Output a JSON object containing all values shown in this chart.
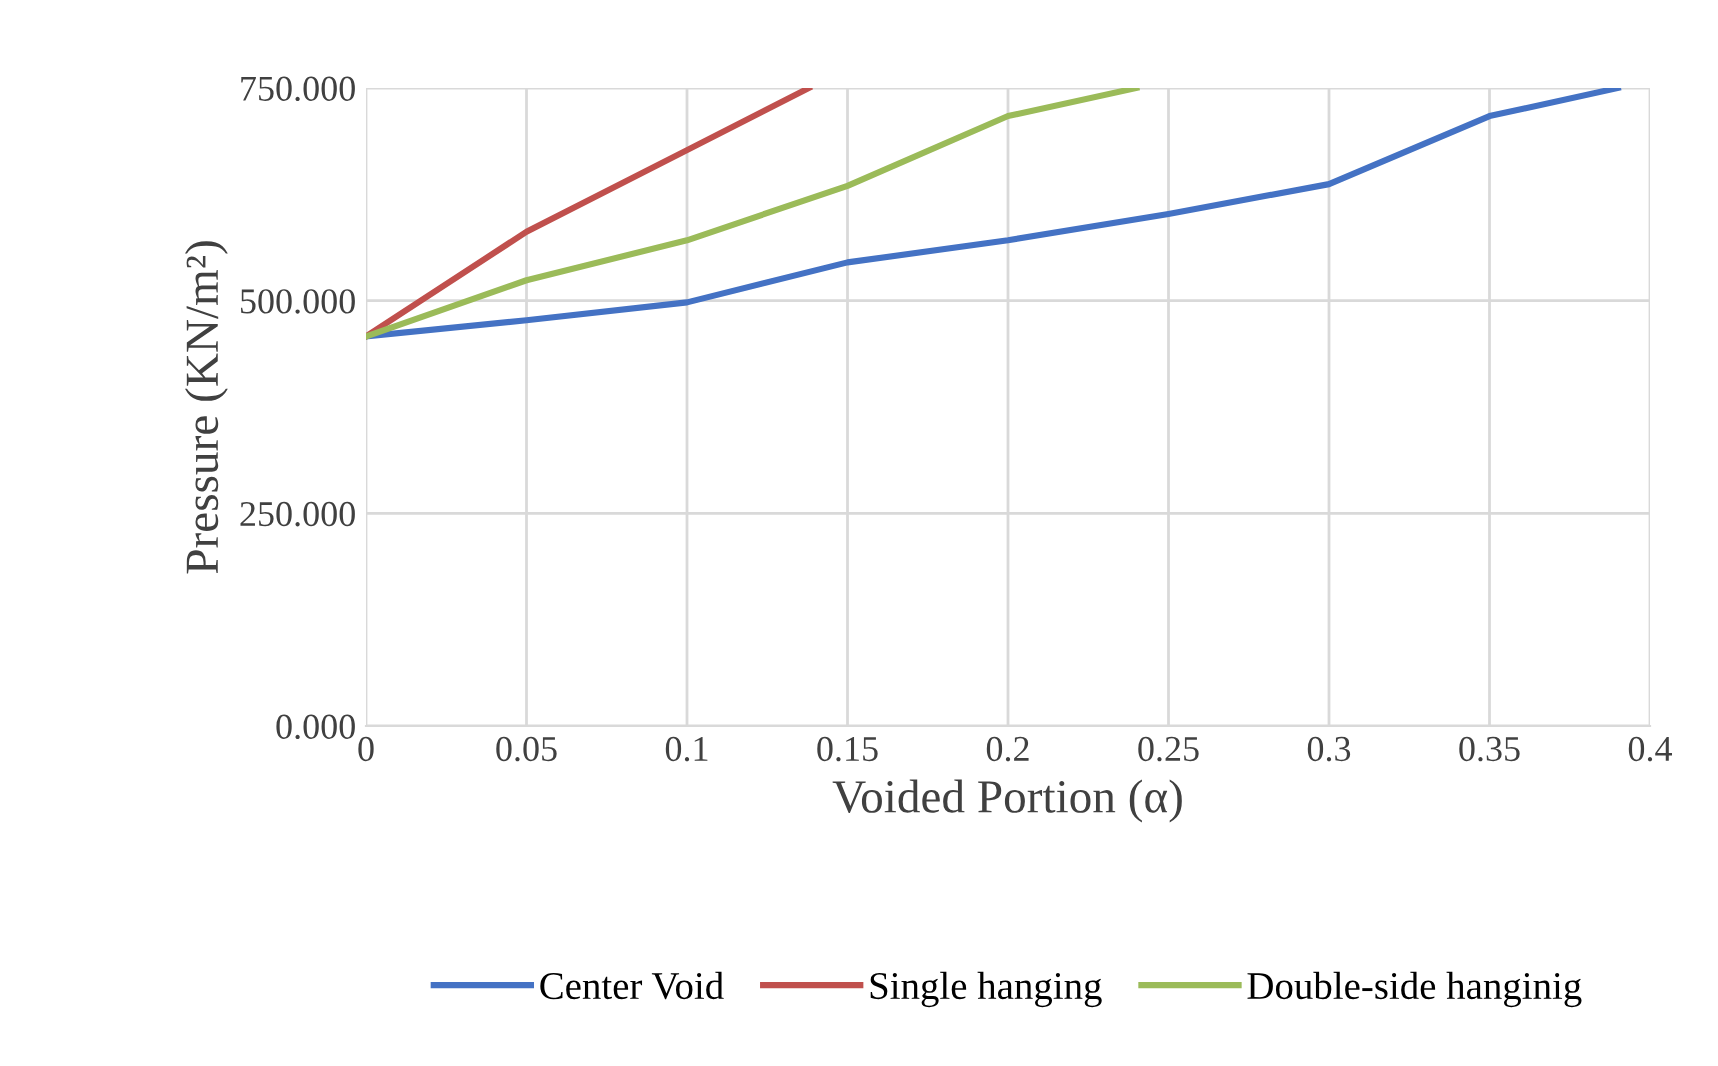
{
  "chart_data": {
    "type": "line",
    "xlabel": "Voided Portion (α)",
    "ylabel": "Pressure (KN/m²)",
    "xlim": [
      0,
      0.4
    ],
    "xticks": [
      0,
      0.05,
      0.1,
      0.15,
      0.2,
      0.25,
      0.3,
      0.35,
      0.4
    ],
    "ylim": [
      0,
      750
    ],
    "yticks": [
      {
        "value": 0,
        "label": "0.000"
      },
      {
        "value": 250,
        "label": "250.000"
      },
      {
        "value": 500,
        "label": "500.000"
      },
      {
        "value": 750,
        "label": "750.000"
      }
    ],
    "grid": true,
    "legend": "bottom",
    "marker": "none",
    "line_style": "solid",
    "series": [
      {
        "name": "Center Void",
        "color": "#4472c4",
        "x": [
          0,
          0.05,
          0.1,
          0.15,
          0.2,
          0.25,
          0.3,
          0.35,
          0.39
        ],
        "values": [
          458,
          477,
          498,
          545,
          571,
          602,
          637,
          717,
          750
        ]
      },
      {
        "name": "Single hanging",
        "color": "#c0504d",
        "x": [
          0,
          0.05,
          0.1,
          0.138
        ],
        "values": [
          458,
          581,
          677,
          750
        ]
      },
      {
        "name": "Double-side hanginig",
        "color": "#9bbb59",
        "x": [
          0,
          0.05,
          0.1,
          0.15,
          0.2,
          0.24
        ],
        "values": [
          458,
          524,
          571,
          635,
          717,
          750
        ]
      }
    ]
  }
}
